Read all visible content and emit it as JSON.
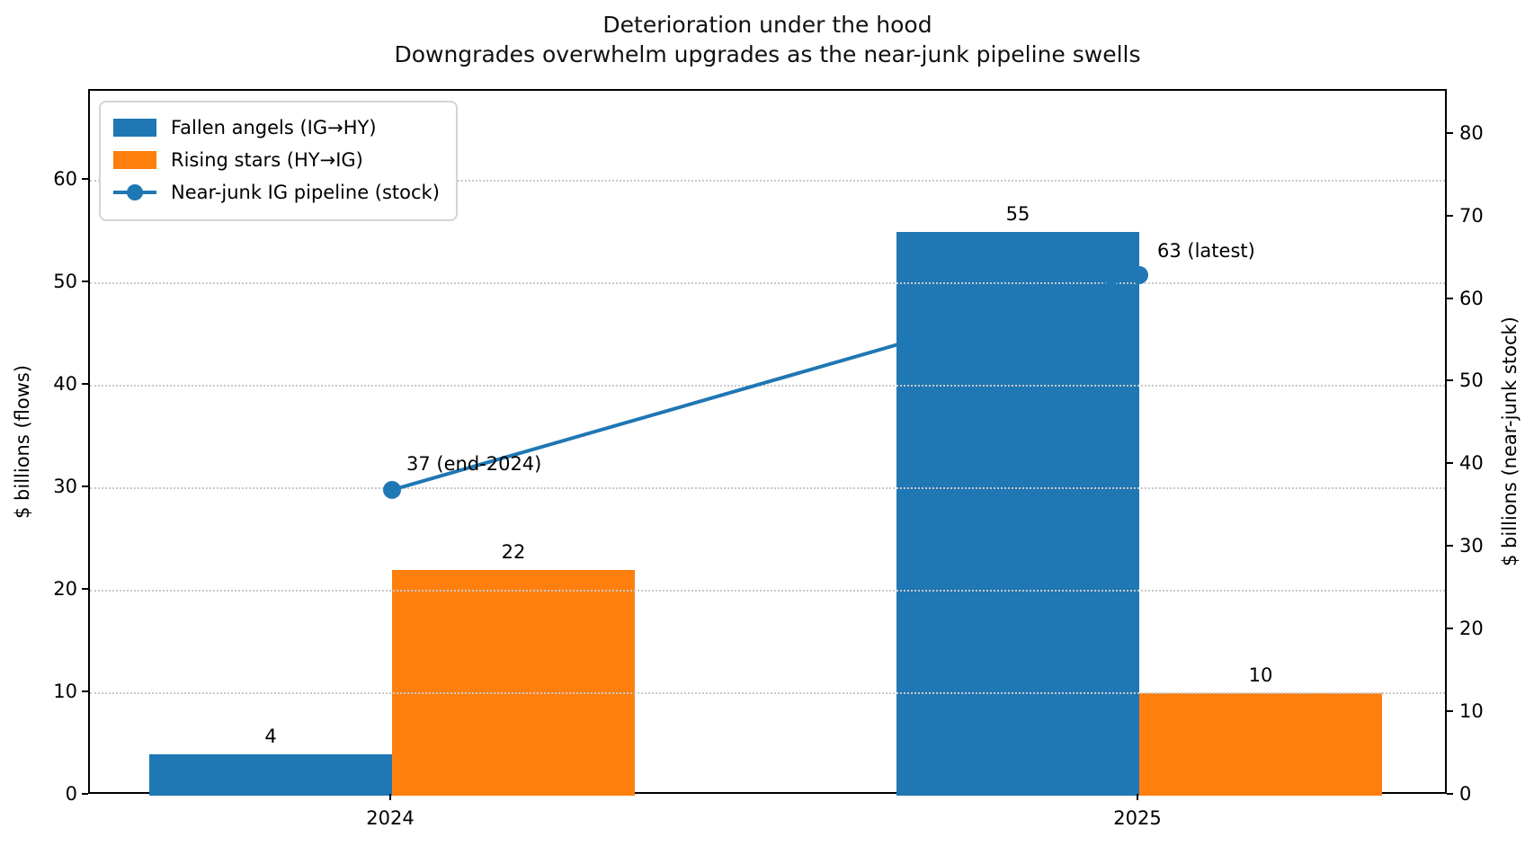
{
  "chart_data": {
    "type": "bar",
    "title": "Deterioration under the hood",
    "subtitle": "Downgrades overwhelm upgrades as the near-junk pipeline swells",
    "categories": [
      "2024",
      "2025"
    ],
    "series": [
      {
        "name": "Fallen angels (IG→HY)",
        "kind": "bar",
        "axis": "left",
        "color": "#1f77b4",
        "values": [
          4,
          55
        ],
        "bar_labels": [
          "4",
          "55"
        ]
      },
      {
        "name": "Rising stars (HY→IG)",
        "kind": "bar",
        "axis": "left",
        "color": "#ff7f0e",
        "values": [
          22,
          10
        ],
        "bar_labels": [
          "22",
          "10"
        ]
      },
      {
        "name": "Near-junk IG pipeline (stock)",
        "kind": "line",
        "axis": "right",
        "color": "#1f77b4",
        "values": [
          37,
          63
        ],
        "point_annotations": [
          "37 (end-2024)",
          "63 (latest)"
        ]
      }
    ],
    "ylabel_left": "$ billions (flows)",
    "ylabel_right": "$ billions (near-junk stock)",
    "yticks_left": [
      0,
      10,
      20,
      30,
      40,
      50,
      60
    ],
    "yticks_right": [
      0,
      10,
      20,
      30,
      40,
      50,
      60,
      70,
      80
    ],
    "ylim_left": [
      0,
      68.8
    ],
    "ylim_right": [
      0,
      85.3
    ],
    "grid": {
      "axis": "y",
      "linestyle": "dotted",
      "color": "#c9c9c9",
      "ticks_source": "left"
    },
    "legend_position": "upper-left",
    "background_color": "#ffffff",
    "text_color": "#000000"
  }
}
